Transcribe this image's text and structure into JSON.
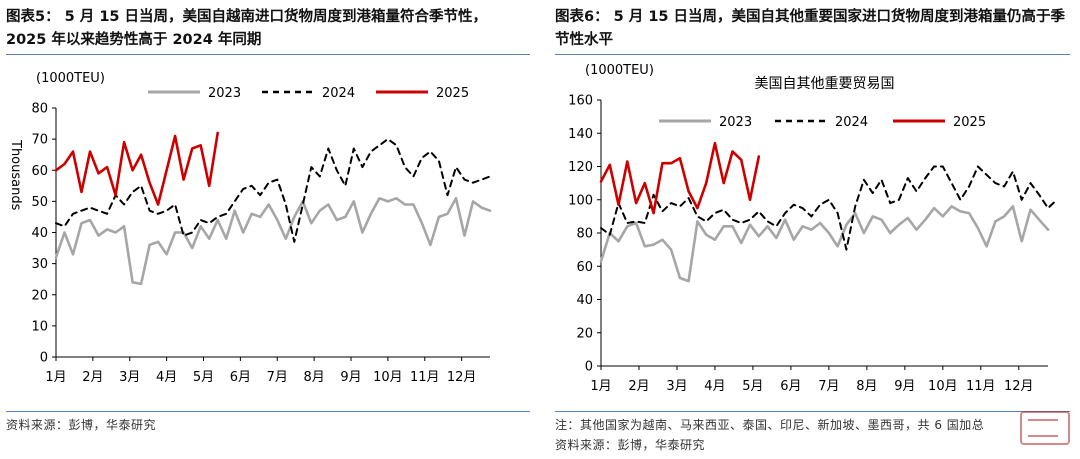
{
  "left": {
    "title": "图表5： 5 月 15 日当周，美国自越南进口货物周度到港箱量符合季节性， 2025 年以来趋势性高于 2024 年同期",
    "unit": "(1000TEU)",
    "footer": "资料来源：彭博，华泰研究",
    "chart_data": {
      "type": "line",
      "title": "",
      "ylabel": "Thousands",
      "unit": "(1000TEU)",
      "ylim": [
        0,
        80
      ],
      "yticks": [
        0,
        10,
        20,
        30,
        40,
        50,
        60,
        70,
        80
      ],
      "x_range": [
        1,
        52
      ],
      "months": [
        "1月",
        "2月",
        "3月",
        "4月",
        "5月",
        "6月",
        "7月",
        "8月",
        "9月",
        "10月",
        "11月",
        "12月"
      ],
      "series": [
        {
          "name": "2023",
          "color": "#a6a6a6",
          "style": "solid",
          "width": 2.6,
          "values": [
            32,
            40,
            33,
            43,
            44,
            39,
            41,
            40,
            42,
            24,
            23.5,
            36,
            37,
            33,
            40,
            40,
            35,
            42,
            38,
            44,
            38,
            47,
            40,
            46,
            45,
            49,
            44,
            38,
            45,
            50,
            43,
            47,
            49,
            44,
            45,
            50,
            40,
            46,
            51,
            50,
            51,
            49,
            49,
            43,
            36,
            45,
            46,
            51,
            39,
            50,
            48,
            47
          ]
        },
        {
          "name": "2024",
          "color": "#000000",
          "style": "dashed",
          "width": 2.0,
          "values": [
            43,
            42,
            46,
            47,
            48,
            47,
            46,
            52,
            49,
            53,
            55,
            47,
            46,
            47,
            49,
            39,
            40,
            44,
            43,
            45,
            46,
            50,
            54,
            55,
            52,
            56,
            57,
            49,
            37,
            49,
            61,
            58,
            67,
            60,
            55,
            67,
            61,
            66,
            68,
            70,
            68,
            61,
            58,
            64,
            66,
            63,
            52,
            61,
            57,
            56,
            57,
            58
          ]
        },
        {
          "name": "2025",
          "color": "#cc0000",
          "style": "solid",
          "width": 2.6,
          "values": [
            60,
            62,
            66,
            53,
            66,
            59,
            61,
            52,
            69,
            60,
            65,
            56,
            49,
            60,
            71,
            57,
            67,
            68,
            55,
            72
          ]
        }
      ]
    }
  },
  "right": {
    "title": "图表6： 5 月 15 日当周，美国自其他重要国家进口货物周度到港箱量仍高于季节性水平",
    "unit": "(1000TEU)",
    "footnote": "注：其他国家为越南、马来西亚、泰国、印尼、新加坡、墨西哥，共 6 国加总",
    "footer": "资料来源：彭博，华泰研究",
    "chart_data": {
      "type": "line",
      "title": "美国自其他重要贸易国",
      "ylabel": "",
      "unit": "(1000TEU)",
      "ylim": [
        0,
        160
      ],
      "yticks": [
        0,
        20,
        40,
        60,
        80,
        100,
        120,
        140,
        160
      ],
      "x_range": [
        1,
        52
      ],
      "months": [
        "1月",
        "2月",
        "3月",
        "4月",
        "5月",
        "6月",
        "7月",
        "8月",
        "9月",
        "10月",
        "11月",
        "12月"
      ],
      "series": [
        {
          "name": "2023",
          "color": "#a6a6a6",
          "style": "solid",
          "width": 2.6,
          "values": [
            63,
            80,
            75,
            84,
            86,
            72,
            73,
            76,
            70,
            53,
            51,
            87,
            79,
            76,
            84,
            84,
            74,
            85,
            78,
            84,
            77,
            88,
            76,
            84,
            82,
            86,
            80,
            72,
            85,
            92,
            80,
            90,
            88,
            80,
            85,
            89,
            82,
            88,
            95,
            90,
            96,
            93,
            92,
            83,
            72,
            87,
            90,
            96,
            75,
            94,
            88,
            82
          ]
        },
        {
          "name": "2024",
          "color": "#000000",
          "style": "dashed",
          "width": 2.0,
          "values": [
            83,
            79,
            98,
            86,
            87,
            86,
            103,
            93,
            98,
            96,
            101,
            90,
            87,
            92,
            94,
            88,
            86,
            88,
            93,
            87,
            84,
            92,
            97,
            95,
            90,
            97,
            100,
            92,
            70,
            96,
            112,
            104,
            112,
            98,
            100,
            113,
            105,
            113,
            120,
            120,
            110,
            100,
            108,
            120,
            115,
            110,
            108,
            117,
            100,
            110,
            103,
            95,
            100
          ]
        },
        {
          "name": "2025",
          "color": "#cc0000",
          "style": "solid",
          "width": 2.6,
          "values": [
            111,
            121,
            97,
            123,
            98,
            110,
            92,
            122,
            122,
            125,
            105,
            95,
            110,
            134,
            110,
            129,
            124,
            100,
            126
          ]
        }
      ]
    }
  }
}
